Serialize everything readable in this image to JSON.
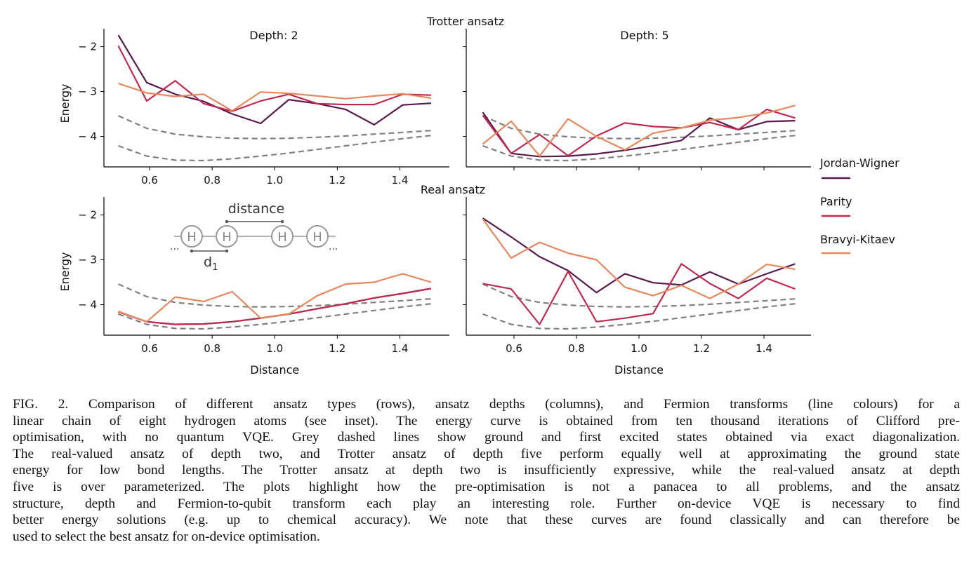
{
  "figure": {
    "row_titles": [
      "Trotter ansatz",
      "Real ansatz"
    ],
    "column_titles": [
      "Depth: 2",
      "Depth: 5"
    ],
    "inset": {
      "distance_label": "distance",
      "d1_label": "d",
      "d1_subscript": "1",
      "atom_label": "H",
      "ellipsis": "..."
    }
  },
  "legend": [
    {
      "name": "Jordan-Wigner",
      "color": "#5b1a4e"
    },
    {
      "name": "Parity",
      "color": "#c2294f"
    },
    {
      "name": "Bravyi-Kitaev",
      "color": "#e8875c"
    }
  ],
  "chart_data": [
    {
      "type": "line",
      "panel": "Trotter ansatz, Depth: 2",
      "xlabel": "",
      "ylabel": "Energy",
      "xlim": [
        0.454,
        1.56
      ],
      "ylim": [
        -4.68,
        -1.6
      ],
      "xticks": [
        "0.6",
        "0.8",
        "1.0",
        "1.2",
        "1.4"
      ],
      "xtick_values": [
        0.6,
        0.8,
        1.0,
        1.2,
        1.4
      ],
      "yticks": [
        "− 2",
        "− 3",
        "− 4"
      ],
      "ytick_values": [
        -2,
        -3,
        -4
      ],
      "x": [
        0.5,
        0.591,
        0.682,
        0.773,
        0.864,
        0.955,
        1.045,
        1.136,
        1.227,
        1.318,
        1.409,
        1.5
      ],
      "series": [
        {
          "name": "Jordan-Wigner",
          "color": "#5b1a4e",
          "values": [
            -1.74,
            -2.8,
            -3.06,
            -3.22,
            -3.5,
            -3.71,
            -3.18,
            -3.27,
            -3.4,
            -3.74,
            -3.3,
            -3.26
          ]
        },
        {
          "name": "Parity",
          "color": "#c2294f",
          "values": [
            -1.98,
            -3.21,
            -2.76,
            -3.27,
            -3.44,
            -3.21,
            -3.06,
            -3.27,
            -3.29,
            -3.29,
            -3.06,
            -3.08
          ]
        },
        {
          "name": "Bravyi-Kitaev",
          "color": "#e8875c",
          "values": [
            -2.82,
            -3.03,
            -3.11,
            -3.06,
            -3.43,
            -3.01,
            -3.04,
            -3.1,
            -3.16,
            -3.1,
            -3.05,
            -3.15
          ]
        },
        {
          "style": "dashed",
          "color": "#808080",
          "values": [
            -3.54,
            -3.82,
            -3.95,
            -4.01,
            -4.04,
            -4.05,
            -4.04,
            -4.02,
            -3.99,
            -3.95,
            -3.91,
            -3.87
          ]
        },
        {
          "style": "dashed",
          "color": "#808080",
          "values": [
            -4.21,
            -4.44,
            -4.53,
            -4.54,
            -4.5,
            -4.44,
            -4.37,
            -4.29,
            -4.21,
            -4.13,
            -4.05,
            -3.98
          ]
        }
      ]
    },
    {
      "type": "line",
      "panel": "Trotter ansatz, Depth: 5",
      "xlabel": "",
      "ylabel": "",
      "xlim": [
        0.454,
        1.56
      ],
      "ylim": [
        -4.68,
        -1.6
      ],
      "xticks": [],
      "xtick_values": [
        0.6,
        0.8,
        1.0,
        1.2,
        1.4
      ],
      "yticks": [],
      "ytick_values": [
        -2,
        -3,
        -4
      ],
      "x": [
        0.5,
        0.591,
        0.682,
        0.773,
        0.864,
        0.955,
        1.045,
        1.136,
        1.227,
        1.318,
        1.409,
        1.5
      ],
      "series": [
        {
          "name": "Jordan-Wigner",
          "color": "#5b1a4e",
          "values": [
            -3.46,
            -4.38,
            -4.45,
            -4.44,
            -4.39,
            -4.31,
            -4.21,
            -4.09,
            -3.59,
            -3.85,
            -3.67,
            -3.65
          ]
        },
        {
          "name": "Parity",
          "color": "#c2294f",
          "values": [
            -3.53,
            -4.38,
            -3.96,
            -4.43,
            -3.99,
            -3.7,
            -3.78,
            -3.81,
            -3.69,
            -3.85,
            -3.4,
            -3.59
          ]
        },
        {
          "name": "Bravyi-Kitaev",
          "color": "#e8875c",
          "values": [
            -4.17,
            -3.66,
            -4.44,
            -3.61,
            -4.0,
            -4.3,
            -3.93,
            -3.81,
            -3.64,
            -3.58,
            -3.48,
            -3.31
          ]
        },
        {
          "style": "dashed",
          "color": "#808080",
          "values": [
            -3.54,
            -3.82,
            -3.95,
            -4.01,
            -4.04,
            -4.05,
            -4.04,
            -4.02,
            -3.99,
            -3.95,
            -3.91,
            -3.87
          ]
        },
        {
          "style": "dashed",
          "color": "#808080",
          "values": [
            -4.21,
            -4.44,
            -4.53,
            -4.54,
            -4.5,
            -4.44,
            -4.37,
            -4.29,
            -4.21,
            -4.13,
            -4.05,
            -3.98
          ]
        }
      ]
    },
    {
      "type": "line",
      "panel": "Real ansatz, Depth: 2",
      "xlabel": "Distance",
      "ylabel": "Energy",
      "xlim": [
        0.454,
        1.56
      ],
      "ylim": [
        -4.68,
        -1.6
      ],
      "xticks": [
        "0.6",
        "0.8",
        "1.0",
        "1.2",
        "1.4"
      ],
      "xtick_values": [
        0.6,
        0.8,
        1.0,
        1.2,
        1.4
      ],
      "yticks": [
        "− 2",
        "− 3",
        "− 4"
      ],
      "ytick_values": [
        -2,
        -3,
        -4
      ],
      "x": [
        0.5,
        0.591,
        0.682,
        0.773,
        0.864,
        0.955,
        1.045,
        1.136,
        1.227,
        1.318,
        1.409,
        1.5
      ],
      "series": [
        {
          "name": "Jordan-Wigner",
          "color": "#5b1a4e",
          "values": [
            -4.16,
            -4.38,
            -4.44,
            -4.43,
            -4.38,
            -4.3,
            -4.21,
            -4.09,
            -3.98,
            -3.85,
            -3.75,
            -3.64
          ]
        },
        {
          "name": "Parity",
          "color": "#c2294f",
          "values": [
            -4.16,
            -4.38,
            -4.44,
            -4.43,
            -4.38,
            -4.3,
            -4.21,
            -4.09,
            -3.98,
            -3.85,
            -3.75,
            -3.64
          ]
        },
        {
          "name": "Bravyi-Kitaev",
          "color": "#e8875c",
          "values": [
            -4.15,
            -4.38,
            -3.83,
            -3.93,
            -3.71,
            -4.3,
            -4.21,
            -3.8,
            -3.54,
            -3.5,
            -3.31,
            -3.5
          ]
        },
        {
          "style": "dashed",
          "color": "#808080",
          "values": [
            -3.54,
            -3.82,
            -3.95,
            -4.01,
            -4.04,
            -4.05,
            -4.04,
            -4.02,
            -3.99,
            -3.95,
            -3.91,
            -3.87
          ]
        },
        {
          "style": "dashed",
          "color": "#808080",
          "values": [
            -4.21,
            -4.44,
            -4.53,
            -4.54,
            -4.5,
            -4.44,
            -4.37,
            -4.29,
            -4.21,
            -4.13,
            -4.05,
            -3.98
          ]
        }
      ]
    },
    {
      "type": "line",
      "panel": "Real ansatz, Depth: 5",
      "xlabel": "Distance",
      "ylabel": "",
      "xlim": [
        0.454,
        1.56
      ],
      "ylim": [
        -4.68,
        -1.6
      ],
      "xticks": [
        "0.6",
        "0.8",
        "1.0",
        "1.2",
        "1.4"
      ],
      "xtick_values": [
        0.6,
        0.8,
        1.0,
        1.2,
        1.4
      ],
      "yticks": [],
      "ytick_values": [
        -2,
        -3,
        -4
      ],
      "x": [
        0.5,
        0.591,
        0.682,
        0.773,
        0.864,
        0.955,
        1.045,
        1.136,
        1.227,
        1.318,
        1.409,
        1.5
      ],
      "series": [
        {
          "name": "Jordan-Wigner",
          "color": "#5b1a4e",
          "values": [
            -2.07,
            -2.49,
            -2.93,
            -3.24,
            -3.73,
            -3.31,
            -3.51,
            -3.56,
            -3.27,
            -3.54,
            -3.31,
            -3.09
          ]
        },
        {
          "name": "Parity",
          "color": "#c2294f",
          "values": [
            -3.53,
            -3.65,
            -4.44,
            -3.26,
            -4.38,
            -4.3,
            -4.2,
            -3.09,
            -3.53,
            -3.86,
            -3.41,
            -3.65
          ]
        },
        {
          "name": "Bravyi-Kitaev",
          "color": "#e8875c",
          "values": [
            -2.09,
            -2.96,
            -2.61,
            -2.85,
            -3.0,
            -3.61,
            -3.8,
            -3.57,
            -3.86,
            -3.54,
            -3.1,
            -3.21
          ]
        },
        {
          "style": "dashed",
          "color": "#808080",
          "values": [
            -3.54,
            -3.82,
            -3.95,
            -4.01,
            -4.04,
            -4.05,
            -4.04,
            -4.02,
            -3.99,
            -3.95,
            -3.91,
            -3.87
          ]
        },
        {
          "style": "dashed",
          "color": "#808080",
          "values": [
            -4.21,
            -4.44,
            -4.53,
            -4.54,
            -4.5,
            -4.44,
            -4.37,
            -4.29,
            -4.21,
            -4.13,
            -4.05,
            -3.98
          ]
        }
      ]
    }
  ],
  "caption": {
    "lines": [
      "FIG. 2.  Comparison of different ansatz types (rows), ansatz depths (columns), and Fermion transforms (line colours) for a",
      "linear chain of eight hydrogen atoms (see inset).  The energy curve is obtained from ten thousand iterations of Clifford pre-",
      "optimisation, with no quantum VQE. Grey dashed lines show ground and first excited states obtained via exact diagonalization.",
      "The real-valued ansatz of depth two, and Trotter ansatz of depth five perform equally well at approximating the ground state",
      "energy for low bond lengths. The Trotter ansatz at depth two is insufficiently expressive, while the real-valued ansatz at depth",
      "five is over parameterized.  The plots highlight how the pre-optimisation is not a panacea to all problems, and the ansatz",
      "structure, depth and Fermion-to-qubit transform each play an interesting role.  Further on-device VQE is necessary to find",
      "better energy solutions (e.g.  up to chemical accuracy).  We note that these curves are found classically and can therefore be",
      "used to select the best ansatz for on-device optimisation."
    ]
  }
}
